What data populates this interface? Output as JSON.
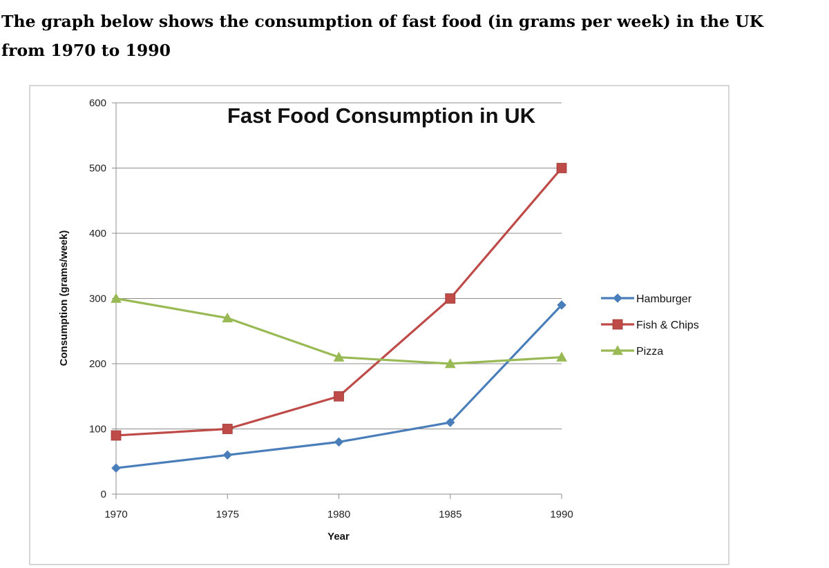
{
  "heading": {
    "line1": "The graph below shows the consumption of fast food (in grams per week) in the UK",
    "line2": "from 1970 to 1990"
  },
  "chart_data": {
    "type": "line",
    "title": "Fast Food Consumption in UK",
    "xlabel": "Year",
    "ylabel": "Consumption  (grams/week)",
    "categories": [
      "1970",
      "1975",
      "1980",
      "1985",
      "1990"
    ],
    "ylim": [
      0,
      600
    ],
    "yticks": [
      "0",
      "100",
      "200",
      "300",
      "400",
      "500",
      "600"
    ],
    "grid": true,
    "legend_position": "right",
    "series": [
      {
        "name": "Hamburger",
        "values": [
          40,
          60,
          80,
          110,
          290
        ],
        "color": "#4a7ebb",
        "marker": "diamond"
      },
      {
        "name": "Fish & Chips",
        "values": [
          90,
          100,
          150,
          300,
          500
        ],
        "color": "#be4b48",
        "marker": "square"
      },
      {
        "name": "Pizza",
        "values": [
          300,
          270,
          210,
          200,
          210
        ],
        "color": "#98b954",
        "marker": "triangle"
      }
    ]
  }
}
